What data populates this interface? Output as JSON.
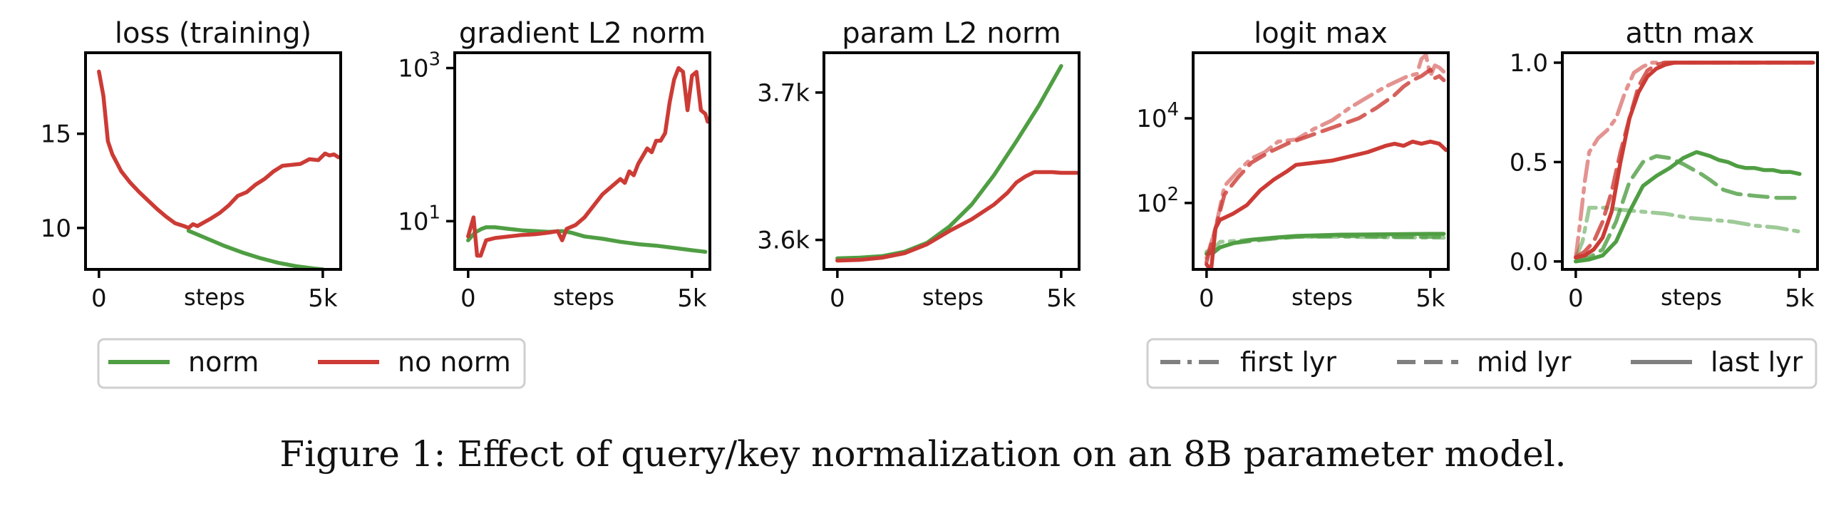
{
  "caption": "Figure 1: Effect of query/key normalization on an 8B parameter model.",
  "colors": {
    "norm": "#4f9e43",
    "no_norm": "#cc3b35",
    "gray": "#808080"
  },
  "legends": {
    "left": [
      {
        "label": "norm",
        "color": "#4f9e43",
        "dash": "solid"
      },
      {
        "label": "no norm",
        "color": "#cc3b35",
        "dash": "solid"
      }
    ],
    "right": [
      {
        "label": "first lyr",
        "dash": "dashdot"
      },
      {
        "label": "mid lyr",
        "dash": "dashed"
      },
      {
        "label": "last lyr",
        "dash": "solid"
      }
    ]
  },
  "chart_data": [
    {
      "type": "line",
      "title": "loss (training)",
      "xlabel": "steps",
      "xlim": [
        -300,
        5400
      ],
      "xticks": [
        {
          "v": 0,
          "label": "0"
        },
        {
          "v": 5000,
          "label": "5k"
        }
      ],
      "ylim": [
        7.8,
        19.3
      ],
      "yscale": "linear",
      "yticks": [
        {
          "v": 10,
          "label": "10"
        },
        {
          "v": 15,
          "label": "15"
        }
      ],
      "series": [
        {
          "group": "norm",
          "layer": "last",
          "x": [
            2000,
            2400,
            2800,
            3200,
            3600,
            4000,
            4400,
            4800,
            5000
          ],
          "y": [
            9.85,
            9.45,
            9.05,
            8.7,
            8.4,
            8.15,
            7.97,
            7.85,
            7.8
          ]
        },
        {
          "group": "no_norm",
          "layer": "last",
          "x": [
            0,
            100,
            200,
            300,
            500,
            700,
            900,
            1100,
            1300,
            1500,
            1700,
            1900,
            2000,
            2100,
            2200,
            2350,
            2500,
            2700,
            2900,
            3100,
            3300,
            3500,
            3700,
            3900,
            4100,
            4300,
            4500,
            4700,
            4900,
            5050,
            5150,
            5250,
            5350
          ],
          "y": [
            18.3,
            17.0,
            14.6,
            13.9,
            13.0,
            12.4,
            11.9,
            11.45,
            11.0,
            10.6,
            10.25,
            10.1,
            10.0,
            10.2,
            10.1,
            10.3,
            10.5,
            10.8,
            11.2,
            11.7,
            11.9,
            12.3,
            12.6,
            13.0,
            13.3,
            13.35,
            13.4,
            13.65,
            13.6,
            13.95,
            13.85,
            13.9,
            13.75
          ]
        }
      ]
    },
    {
      "type": "line",
      "title": "gradient L2 norm",
      "xlabel": "steps",
      "xlim": [
        -300,
        5400
      ],
      "xticks": [
        {
          "v": 0,
          "label": "0"
        },
        {
          "v": 5000,
          "label": "5k"
        }
      ],
      "ylim": [
        0.37,
        3.2
      ],
      "yscale": "log10",
      "yticks": [
        {
          "v": 1,
          "label": "10^1"
        },
        {
          "v": 3,
          "label": "10^3"
        }
      ],
      "series": [
        {
          "group": "norm",
          "layer": "last",
          "x": [
            0,
            150,
            300,
            400,
            600,
            900,
            1200,
            1500,
            1800,
            2100,
            2300,
            2600,
            3000,
            3400,
            3800,
            4200,
            4600,
            5000,
            5300
          ],
          "y": [
            0.75,
            0.85,
            0.9,
            0.92,
            0.92,
            0.9,
            0.88,
            0.87,
            0.86,
            0.87,
            0.85,
            0.8,
            0.77,
            0.73,
            0.7,
            0.68,
            0.65,
            0.62,
            0.6
          ]
        },
        {
          "group": "no_norm",
          "layer": "last",
          "x": [
            0,
            120,
            200,
            280,
            400,
            600,
            900,
            1200,
            1500,
            1800,
            2000,
            2100,
            2200,
            2400,
            2600,
            2800,
            3000,
            3200,
            3400,
            3500,
            3600,
            3700,
            3800,
            4000,
            4100,
            4200,
            4300,
            4400,
            4500,
            4600,
            4700,
            4800,
            4900,
            5000,
            5100,
            5150,
            5200,
            5300,
            5350
          ],
          "y": [
            0.8,
            1.05,
            0.55,
            0.55,
            0.75,
            0.78,
            0.8,
            0.82,
            0.83,
            0.85,
            0.87,
            0.75,
            0.9,
            0.95,
            1.05,
            1.2,
            1.35,
            1.45,
            1.55,
            1.5,
            1.65,
            1.6,
            1.75,
            1.95,
            1.9,
            2.05,
            2.05,
            2.15,
            2.55,
            2.85,
            3.0,
            2.95,
            2.45,
            2.9,
            2.95,
            2.7,
            2.45,
            2.4,
            2.3
          ]
        }
      ]
    },
    {
      "type": "line",
      "title": "param L2 norm",
      "xlabel": "steps",
      "xlim": [
        -300,
        5400
      ],
      "xticks": [
        {
          "v": 0,
          "label": "0"
        },
        {
          "v": 5000,
          "label": "5k"
        }
      ],
      "ylim": [
        3580,
        3727
      ],
      "yscale": "linear",
      "yticks": [
        {
          "v": 3600,
          "label": "3.6k"
        },
        {
          "v": 3700,
          "label": "3.7k"
        }
      ],
      "series": [
        {
          "group": "norm",
          "layer": "last",
          "x": [
            0,
            500,
            1000,
            1500,
            2000,
            2500,
            3000,
            3500,
            4000,
            4500,
            5000
          ],
          "y": [
            3587.5,
            3588,
            3589,
            3592,
            3598,
            3609,
            3624,
            3644,
            3667,
            3691,
            3718
          ]
        },
        {
          "group": "no_norm",
          "layer": "last",
          "x": [
            0,
            500,
            1000,
            1500,
            2000,
            2500,
            3000,
            3500,
            3800,
            4000,
            4200,
            4400,
            4600,
            4800,
            5000,
            5200,
            5350
          ],
          "y": [
            3586,
            3586.5,
            3588,
            3591,
            3597,
            3606,
            3614,
            3624,
            3632,
            3639,
            3643,
            3646,
            3646,
            3646,
            3645.5,
            3645.5,
            3645.5
          ]
        }
      ]
    },
    {
      "type": "line",
      "title": "logit max",
      "xlabel": "steps",
      "xlim": [
        -300,
        5400
      ],
      "xticks": [
        {
          "v": 0,
          "label": "0"
        },
        {
          "v": 5000,
          "label": "5k"
        }
      ],
      "ylim": [
        0.43,
        5.55
      ],
      "yscale": "log10",
      "yticks": [
        {
          "v": 2,
          "label": "10^2"
        },
        {
          "v": 4,
          "label": "10^4"
        }
      ],
      "series": [
        {
          "group": "norm",
          "layer": "first",
          "x": [
            0,
            150,
            300,
            600,
            1000,
            1500,
            2000,
            3000,
            4000,
            5000,
            5300
          ],
          "y": [
            0.85,
            0.9,
            1.08,
            1.1,
            1.13,
            1.17,
            1.2,
            1.2,
            1.19,
            1.18,
            1.18
          ]
        },
        {
          "group": "norm",
          "layer": "mid",
          "x": [
            0,
            150,
            300,
            600,
            1000,
            1500,
            2000,
            3000,
            4000,
            5000,
            5300
          ],
          "y": [
            0.8,
            0.85,
            0.95,
            1.05,
            1.1,
            1.16,
            1.2,
            1.22,
            1.2,
            1.2,
            1.2
          ]
        },
        {
          "group": "norm",
          "layer": "last",
          "x": [
            0,
            150,
            300,
            600,
            1000,
            1500,
            2000,
            3000,
            4000,
            5000,
            5300
          ],
          "y": [
            0.8,
            0.82,
            0.95,
            1.05,
            1.13,
            1.18,
            1.22,
            1.25,
            1.26,
            1.27,
            1.27
          ]
        },
        {
          "group": "no_norm",
          "layer": "first",
          "x": [
            0,
            200,
            400,
            700,
            1000,
            1300,
            1600,
            2000,
            2400,
            2800,
            3200,
            3600,
            4000,
            4300,
            4500,
            4700,
            4800,
            4900,
            5000,
            5100,
            5200,
            5300
          ],
          "y": [
            0.7,
            1.4,
            2.4,
            2.75,
            3.05,
            3.2,
            3.45,
            3.5,
            3.75,
            3.95,
            4.25,
            4.5,
            4.75,
            4.9,
            5.0,
            5.05,
            5.4,
            5.5,
            5.0,
            5.25,
            5.2,
            5.1
          ]
        },
        {
          "group": "no_norm",
          "layer": "mid",
          "x": [
            0,
            200,
            400,
            700,
            1000,
            1400,
            1800,
            2200,
            2600,
            3000,
            3400,
            3800,
            4200,
            4400,
            4600,
            4800,
            5000,
            5100,
            5200,
            5300
          ],
          "y": [
            0.6,
            1.4,
            2.2,
            2.6,
            2.95,
            3.2,
            3.4,
            3.55,
            3.7,
            3.85,
            4.0,
            4.25,
            4.55,
            4.75,
            4.9,
            5.0,
            5.15,
            4.95,
            5.0,
            4.9
          ]
        },
        {
          "group": "no_norm",
          "layer": "last",
          "x": [
            0,
            100,
            200,
            300,
            600,
            900,
            1200,
            1500,
            1800,
            2000,
            2400,
            2800,
            3200,
            3600,
            4000,
            4200,
            4400,
            4600,
            4800,
            5000,
            5200,
            5350
          ],
          "y": [
            0.55,
            0.4,
            1.4,
            1.6,
            1.75,
            1.95,
            2.3,
            2.55,
            2.75,
            2.9,
            2.95,
            3.0,
            3.1,
            3.2,
            3.35,
            3.4,
            3.35,
            3.45,
            3.4,
            3.45,
            3.4,
            3.25
          ]
        }
      ]
    },
    {
      "type": "line",
      "title": "attn max",
      "xlabel": "steps",
      "xlim": [
        -300,
        5400
      ],
      "xticks": [
        {
          "v": 0,
          "label": "0"
        },
        {
          "v": 5000,
          "label": "5k"
        }
      ],
      "ylim": [
        -0.04,
        1.05
      ],
      "yscale": "linear",
      "yticks": [
        {
          "v": 0,
          "label": "0.0"
        },
        {
          "v": 0.5,
          "label": "0.5"
        },
        {
          "v": 1,
          "label": "1.0"
        }
      ],
      "series": [
        {
          "group": "norm",
          "layer": "first",
          "x": [
            0,
            150,
            300,
            700,
            1000,
            1500,
            2000,
            2500,
            3000,
            3500,
            4000,
            4500,
            5000
          ],
          "y": [
            0.02,
            0.1,
            0.27,
            0.27,
            0.26,
            0.25,
            0.24,
            0.22,
            0.21,
            0.2,
            0.18,
            0.17,
            0.15
          ]
        },
        {
          "group": "norm",
          "layer": "mid",
          "x": [
            0,
            300,
            600,
            900,
            1200,
            1500,
            1800,
            2100,
            2400,
            2800,
            3000,
            3300,
            3600,
            4000,
            4500,
            5000
          ],
          "y": [
            0.0,
            0.02,
            0.06,
            0.2,
            0.4,
            0.5,
            0.53,
            0.52,
            0.49,
            0.44,
            0.41,
            0.36,
            0.34,
            0.33,
            0.32,
            0.32
          ]
        },
        {
          "group": "norm",
          "layer": "last",
          "x": [
            0,
            300,
            600,
            900,
            1200,
            1500,
            1800,
            2100,
            2400,
            2700,
            3000,
            3200,
            3400,
            3600,
            3800,
            4000,
            4200,
            4400,
            4600,
            4800,
            5000
          ],
          "y": [
            0.0,
            0.01,
            0.03,
            0.1,
            0.25,
            0.38,
            0.43,
            0.47,
            0.52,
            0.55,
            0.53,
            0.51,
            0.5,
            0.48,
            0.47,
            0.47,
            0.46,
            0.46,
            0.45,
            0.45,
            0.44
          ]
        },
        {
          "group": "no_norm",
          "layer": "first",
          "x": [
            0,
            100,
            200,
            300,
            500,
            700,
            900,
            1100,
            1300,
            1500,
            1700,
            2000,
            2500,
            3000,
            4000,
            5000,
            5300
          ],
          "y": [
            0.02,
            0.2,
            0.4,
            0.55,
            0.62,
            0.66,
            0.72,
            0.85,
            0.95,
            0.98,
            1.0,
            1.0,
            1.0,
            1.0,
            1.0,
            1.0,
            1.0
          ]
        },
        {
          "group": "no_norm",
          "layer": "mid",
          "x": [
            0,
            200,
            400,
            600,
            800,
            1000,
            1200,
            1400,
            1600,
            1800,
            2000,
            2200,
            2500,
            3000,
            4000,
            5000,
            5300
          ],
          "y": [
            0.02,
            0.05,
            0.1,
            0.2,
            0.35,
            0.55,
            0.72,
            0.88,
            0.96,
            0.99,
            1.0,
            1.0,
            1.0,
            1.0,
            1.0,
            1.0,
            1.0
          ]
        },
        {
          "group": "no_norm",
          "layer": "last",
          "x": [
            0,
            200,
            400,
            600,
            800,
            1000,
            1200,
            1400,
            1600,
            1800,
            2000,
            2200,
            2500,
            3000,
            4000,
            5000,
            5300
          ],
          "y": [
            0.02,
            0.03,
            0.06,
            0.12,
            0.25,
            0.5,
            0.72,
            0.85,
            0.93,
            0.97,
            0.99,
            1.0,
            1.0,
            1.0,
            1.0,
            1.0,
            1.0
          ]
        }
      ]
    }
  ]
}
